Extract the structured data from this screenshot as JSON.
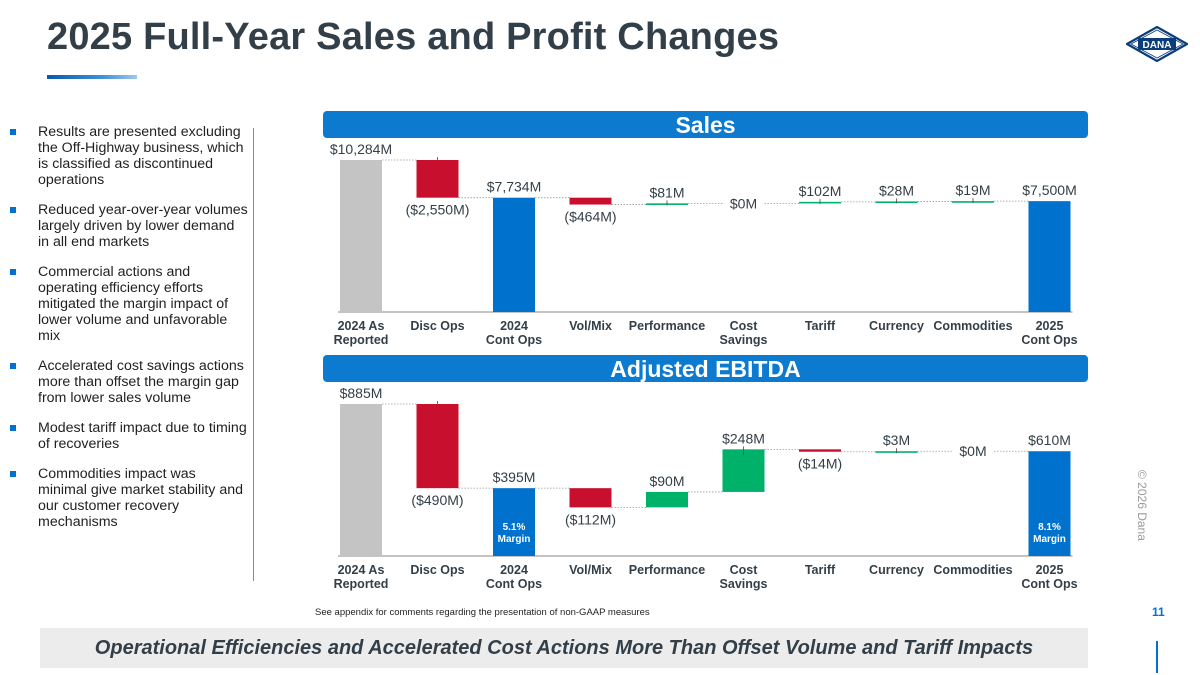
{
  "title": "2025 Full-Year Sales and Profit Changes",
  "logo_text": "DANA",
  "bullets": [
    "Results are presented excluding the Off-Highway business, which is classified as discontinued operations",
    "Reduced year-over-year volumes largely driven by lower demand in all end markets",
    "Commercial actions and operating efficiency efforts mitigated the margin impact of lower volume and unfavorable mix",
    "Accelerated cost savings actions more than offset the margin gap from lower sales volume",
    "Modest tariff impact due to timing of recoveries",
    "Commodities impact was minimal give market stability and our customer recovery mechanisms"
  ],
  "colors": {
    "total_blue": "#0072ce",
    "reported_gray": "#c4c4c4",
    "negative_red": "#c8102e",
    "positive_green": "#00b16a",
    "header_blue": "#0c7bcf"
  },
  "chart_data": [
    {
      "type": "waterfall",
      "title": "Sales",
      "unit": "$M",
      "categories": [
        "2024 As Reported",
        "Disc Ops",
        "2024 Cont Ops",
        "Vol/Mix",
        "Performance",
        "Cost Savings",
        "Tariff",
        "Currency",
        "Commodities",
        "2025 Cont Ops"
      ],
      "category_lines": [
        [
          "2024 As",
          "Reported"
        ],
        [
          "Disc Ops"
        ],
        [
          "2024",
          "Cont Ops"
        ],
        [
          "Vol/Mix"
        ],
        [
          "Performance"
        ],
        [
          "Cost",
          "Savings"
        ],
        [
          "Tariff"
        ],
        [
          "Currency"
        ],
        [
          "Commodities"
        ],
        [
          "2025",
          "Cont Ops"
        ]
      ],
      "kinds": [
        "start",
        "delta",
        "total",
        "delta",
        "delta",
        "delta",
        "delta",
        "delta",
        "delta",
        "total"
      ],
      "values": [
        10284,
        -2550,
        7734,
        -464,
        81,
        0,
        102,
        28,
        19,
        7500
      ],
      "labels": [
        "$10,284M",
        "($2,550M)",
        "$7,734M",
        "($464M)",
        "$81M",
        "$0M",
        "$102M",
        "$28M",
        "$19M",
        "$7,500M"
      ],
      "bar_notes": [
        "",
        "",
        "",
        "",
        "",
        "",
        "",
        "",
        "",
        ""
      ]
    },
    {
      "type": "waterfall",
      "title": "Adjusted EBITDA",
      "unit": "$M",
      "categories": [
        "2024 As Reported",
        "Disc Ops",
        "2024 Cont Ops",
        "Vol/Mix",
        "Performance",
        "Cost Savings",
        "Tariff",
        "Currency",
        "Commodities",
        "2025 Cont Ops"
      ],
      "category_lines": [
        [
          "2024 As",
          "Reported"
        ],
        [
          "Disc Ops"
        ],
        [
          "2024",
          "Cont Ops"
        ],
        [
          "Vol/Mix"
        ],
        [
          "Performance"
        ],
        [
          "Cost",
          "Savings"
        ],
        [
          "Tariff"
        ],
        [
          "Currency"
        ],
        [
          "Commodities"
        ],
        [
          "2025",
          "Cont Ops"
        ]
      ],
      "kinds": [
        "start",
        "delta",
        "total",
        "delta",
        "delta",
        "delta",
        "delta",
        "delta",
        "delta",
        "total"
      ],
      "values": [
        885,
        -490,
        395,
        -112,
        90,
        248,
        -14,
        3,
        0,
        610
      ],
      "labels": [
        "$885M",
        "($490M)",
        "$395M",
        "($112M)",
        "$90M",
        "$248M",
        "($14M)",
        "$3M",
        "$0M",
        "$610M"
      ],
      "bar_notes": [
        "",
        "",
        "5.1% Margin",
        "",
        "",
        "",
        "",
        "",
        "",
        "8.1% Margin"
      ]
    }
  ],
  "footnote": "See appendix for comments regarding the presentation of non-GAAP measures",
  "page_number": "11",
  "copyright": "© 2026 Dana",
  "banner": "Operational Efficiencies and Accelerated Cost Actions More Than Offset Volume and Tariff Impacts"
}
